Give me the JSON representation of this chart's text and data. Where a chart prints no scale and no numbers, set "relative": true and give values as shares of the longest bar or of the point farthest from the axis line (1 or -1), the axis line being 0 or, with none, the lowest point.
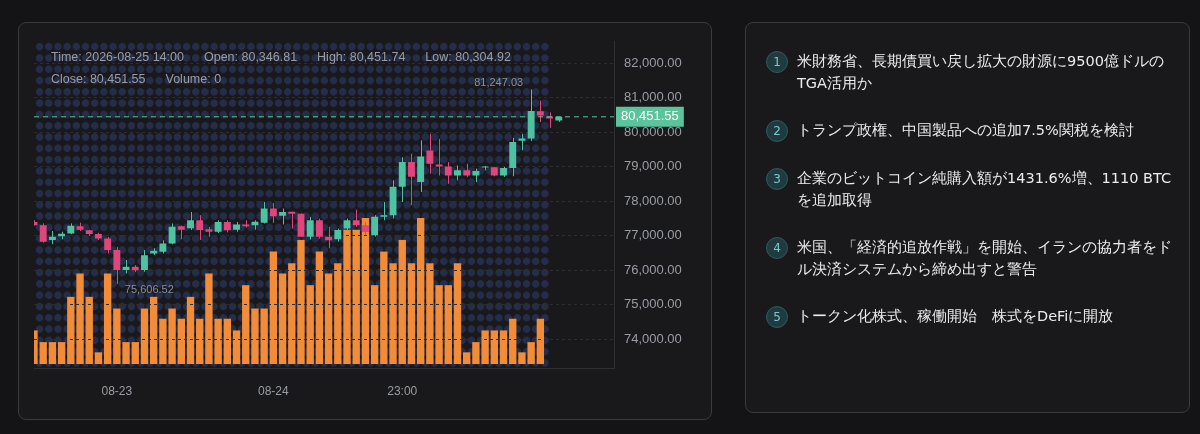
{
  "chart_data": [
    {
      "type": "candlestick",
      "categories": [
        null,
        null,
        null,
        null,
        null,
        null,
        null,
        null,
        null,
        "08-23",
        null,
        null,
        null,
        null,
        null,
        null,
        null,
        null,
        null,
        null,
        null,
        null,
        null,
        null,
        null,
        null,
        "08-24",
        null,
        null,
        null,
        null,
        null,
        null,
        null,
        null,
        null,
        null,
        null,
        null,
        null,
        "23:00",
        null,
        null,
        null,
        null,
        null,
        null,
        null,
        null,
        null,
        null,
        null,
        null,
        null,
        null,
        null,
        null,
        null,
        null,
        null,
        null,
        null,
        null,
        null
      ],
      "ohlc": [
        [
          77400,
          77450,
          77300,
          77310
        ],
        [
          77310,
          77360,
          76800,
          76830
        ],
        [
          76880,
          77140,
          76760,
          76970
        ],
        [
          76990,
          77120,
          76900,
          77060
        ],
        [
          77070,
          77360,
          77050,
          77290
        ],
        [
          77280,
          77380,
          77140,
          77180
        ],
        [
          77160,
          77180,
          77000,
          77050
        ],
        [
          77050,
          77090,
          76880,
          76920
        ],
        [
          76920,
          76970,
          76490,
          76590
        ],
        [
          76590,
          76680,
          75606.52,
          76010
        ],
        [
          76010,
          76300,
          75910,
          76100
        ],
        [
          76100,
          76150,
          75950,
          76000
        ],
        [
          76010,
          76590,
          75960,
          76440
        ],
        [
          76490,
          76640,
          76440,
          76570
        ],
        [
          76540,
          76870,
          76490,
          76780
        ],
        [
          76780,
          77360,
          76760,
          77260
        ],
        [
          77280,
          77300,
          76900,
          77180
        ],
        [
          77220,
          77690,
          77170,
          77450
        ],
        [
          77450,
          77600,
          76880,
          77170
        ],
        [
          77190,
          77260,
          76970,
          77120
        ],
        [
          77120,
          77450,
          77080,
          77400
        ],
        [
          77400,
          77450,
          77100,
          77160
        ],
        [
          77180,
          77400,
          77120,
          77330
        ],
        [
          77330,
          77450,
          77240,
          77280
        ],
        [
          77310,
          77450,
          77180,
          77410
        ],
        [
          77380,
          77980,
          77360,
          77790
        ],
        [
          77790,
          77950,
          77380,
          77570
        ],
        [
          77580,
          77790,
          77330,
          77690
        ],
        [
          77700,
          77700,
          77210,
          77640
        ],
        [
          77640,
          77650,
          76970,
          76970
        ],
        [
          76970,
          77550,
          76890,
          77450
        ],
        [
          77450,
          77500,
          76920,
          76970
        ],
        [
          76970,
          77260,
          76640,
          76870
        ],
        [
          76900,
          77210,
          76830,
          77170
        ],
        [
          77210,
          77500,
          77170,
          77450
        ],
        [
          77450,
          77760,
          77260,
          77310
        ],
        [
          77310,
          77400,
          77020,
          77110
        ],
        [
          77020,
          77600,
          76980,
          77550
        ],
        [
          77550,
          77980,
          77450,
          77600
        ],
        [
          77600,
          78610,
          77500,
          78420
        ],
        [
          78420,
          79280,
          77980,
          79140
        ],
        [
          79140,
          79380,
          77890,
          78710
        ],
        [
          78560,
          79770,
          78270,
          79300
        ],
        [
          79475,
          79960,
          78800,
          79090
        ],
        [
          79070,
          79810,
          78750,
          79010
        ],
        [
          79010,
          79140,
          78510,
          78750
        ],
        [
          78750,
          79040,
          78610,
          78900
        ],
        [
          78900,
          79090,
          78710,
          78750
        ],
        [
          78750,
          78950,
          78560,
          78880
        ],
        [
          78980,
          79020,
          78900,
          79010
        ],
        [
          78990,
          79000,
          78730,
          78750
        ],
        [
          78750,
          79000,
          78710,
          78970
        ],
        [
          78970,
          79840,
          78730,
          79720
        ],
        [
          79760,
          79960,
          79480,
          79820
        ],
        [
          79820,
          81247.03,
          79750,
          80620
        ],
        [
          80610,
          80920,
          80300,
          80490
        ],
        [
          80460,
          80580,
          80130,
          80400
        ],
        [
          80346.81,
          80451.74,
          80304.92,
          80451.55
        ],
        null,
        null,
        null,
        null,
        null,
        null
      ],
      "ylim": [
        73150,
        82650
      ],
      "yticks": [
        {
          "value": 74000,
          "label": "74,000.00"
        },
        {
          "value": 75000,
          "label": "75,000.00"
        },
        {
          "value": 76000,
          "label": "76,000.00"
        },
        {
          "value": 77000,
          "label": "77,000.00"
        },
        {
          "value": 78000,
          "label": "78,000.00"
        },
        {
          "value": 79000,
          "label": "79,000.00"
        },
        {
          "value": 80000,
          "label": "80,000.00"
        },
        {
          "value": 81000,
          "label": "81,000.00"
        },
        {
          "value": 82000,
          "label": "82,000.00"
        }
      ],
      "grid": "y",
      "ref_lines": [
        {
          "axis": "y",
          "value": 80451.55,
          "label": "80,451.55",
          "color": "#5cc49c",
          "line_style": "dashed"
        }
      ],
      "annotations": [
        "Time: 2026-08-25 14:00",
        "Open: 80,346.81",
        "High: 80,451.74",
        "Low: 80,304.92",
        "Close: 80,451.55",
        "Volume: 0",
        "81,247.03",
        "75,606.52"
      ]
    },
    {
      "type": "bar",
      "relative": true,
      "color": "#f28c38",
      "categories": [
        null,
        null,
        null,
        null,
        null,
        null,
        null,
        null,
        null,
        null,
        null,
        null,
        null,
        null,
        null,
        null,
        null,
        null,
        null,
        null,
        null,
        null,
        null,
        null,
        null,
        null,
        null,
        null,
        null,
        null,
        null,
        null,
        null,
        null,
        null,
        null,
        null,
        null,
        null,
        null,
        null,
        null,
        null,
        null,
        null,
        null,
        null,
        null,
        null,
        null,
        null,
        null,
        null,
        null,
        null,
        null,
        null,
        null,
        null,
        null,
        null,
        null,
        null,
        null
      ],
      "values": [
        0.23,
        0.15,
        0.15,
        0.15,
        0.46,
        0.62,
        0.46,
        0.08,
        0.62,
        0.38,
        0.15,
        0.15,
        0.38,
        0.46,
        0.31,
        0.38,
        0.31,
        0.46,
        0.31,
        0.62,
        0.31,
        0.31,
        0.23,
        0.54,
        0.38,
        0.38,
        0.77,
        0.62,
        0.69,
        0.85,
        0.54,
        0.77,
        0.62,
        0.69,
        0.92,
        0.92,
        1,
        0.54,
        0.77,
        0.69,
        0.85,
        0.69,
        1,
        0.69,
        0.54,
        0.54,
        0.69,
        0.08,
        0.15,
        0.23,
        0.23,
        0.23,
        0.31,
        0.08,
        0.15,
        0.31,
        null,
        null,
        null,
        null,
        null,
        null,
        null,
        null
      ]
    },
    {
      "type": "other",
      "annotations": [
        "1",
        "2",
        "3",
        "4",
        "5",
        "米財務省、長期債買い戻し拡大の財源に9500億ドルのTGA活用か",
        "トランプ政権、中国製品への追加7.5%関税を検討",
        "企業のビットコイン純購入額が1431.6%増、1110 BTCを追加取得",
        "米国、「経済的追放作戦」を開始、イランの協力者をドル決済システムから締め出すと警告",
        "トークン化株式、稼働開始　株式をDeFiに開放"
      ]
    }
  ]
}
